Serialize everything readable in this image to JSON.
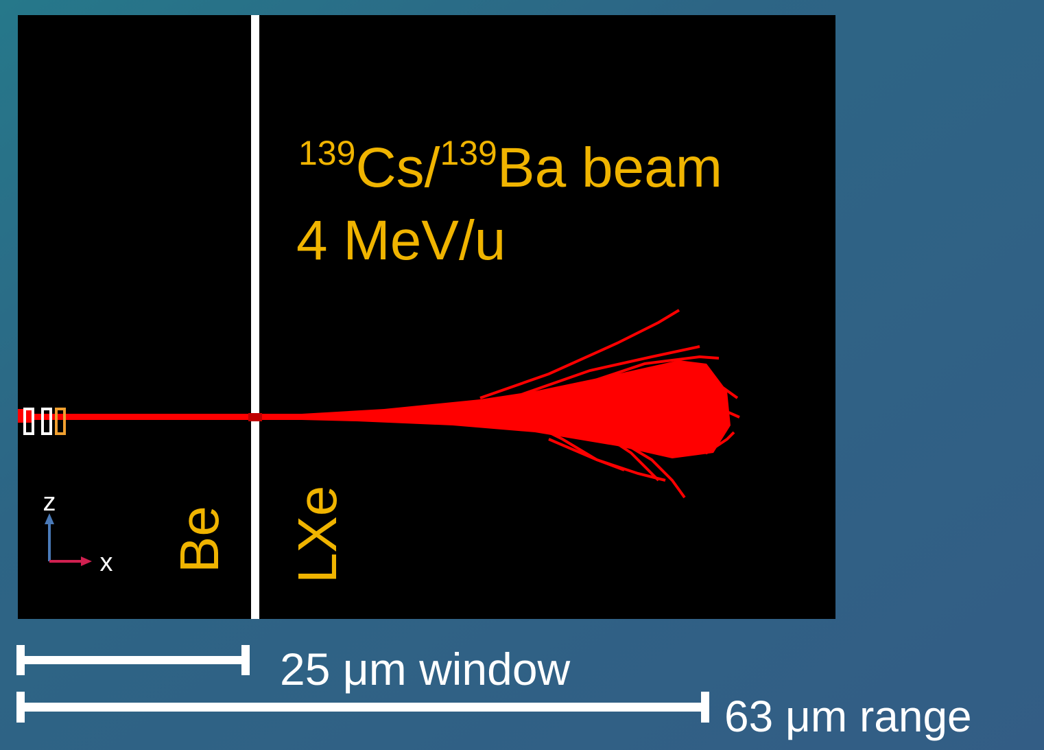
{
  "beam_label": {
    "mass1": "139",
    "element1": "Cs/",
    "mass2": "139",
    "element2": "Ba beam",
    "energy": "4 MeV/u"
  },
  "axes": {
    "z": "z",
    "x": "x"
  },
  "regions": [
    "Be",
    "LXe"
  ],
  "scale_bars": [
    {
      "label": "25 μm window"
    },
    {
      "label": "63 μm range"
    }
  ]
}
